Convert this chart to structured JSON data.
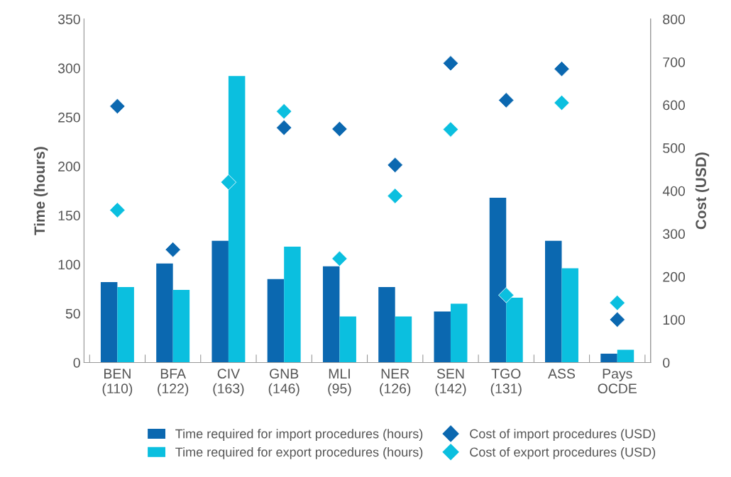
{
  "chart_data": {
    "type": "bar",
    "categories": [
      "BEN\n(110)",
      "BFA\n(122)",
      "CIV\n(163)",
      "GNB\n(146)",
      "MLI\n(95)",
      "NER\n(126)",
      "SEN\n(142)",
      "TGO\n(131)",
      "ASS",
      "Pays\nOCDE"
    ],
    "ylabel": "Time (hours)",
    "y2label": "Cost (USD)",
    "series": [
      {
        "name": "Time required for import procedures (hours)",
        "color": "#0b68b0",
        "values": [
          82,
          101,
          124,
          85,
          98,
          77,
          52,
          168,
          124,
          9
        ]
      },
      {
        "name": "Time required for export procedures (hours)",
        "color": "#0bbfdf",
        "values": [
          77,
          74,
          292,
          118,
          47,
          47,
          60,
          66,
          96,
          13
        ]
      },
      {
        "name": "Cost of import procedures (USD)",
        "type": "scatter",
        "axis": "y2",
        "marker": "diamond",
        "color": "#0b68b0",
        "values": [
          597,
          263,
          null,
          547,
          544,
          460,
          697,
          611,
          684,
          100
        ]
      },
      {
        "name": "Cost of export procedures (USD)",
        "type": "scatter",
        "axis": "y2",
        "marker": "diamond",
        "color": "#0bbfdf",
        "values": [
          355,
          null,
          420,
          585,
          242,
          388,
          543,
          157,
          605,
          139
        ]
      }
    ],
    "ylim": [
      0,
      350
    ],
    "yticks": [
      0,
      50,
      100,
      150,
      200,
      250,
      300,
      350
    ],
    "y2lim": [
      0,
      800
    ],
    "y2ticks": [
      0,
      100,
      200,
      300,
      400,
      500,
      600,
      700,
      800
    ],
    "grid": false,
    "legend": "bottom"
  }
}
